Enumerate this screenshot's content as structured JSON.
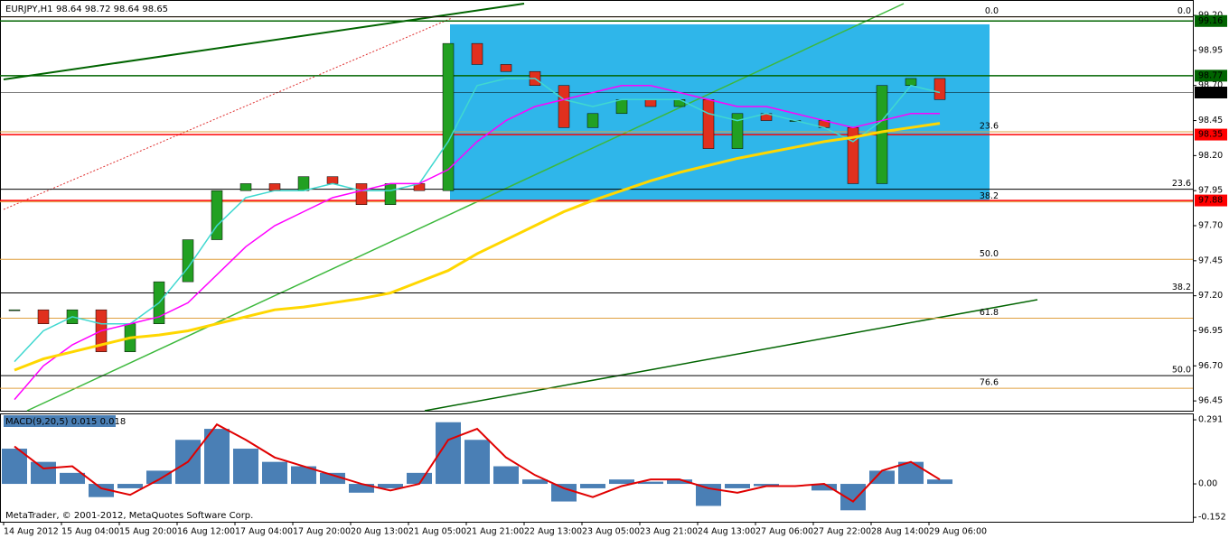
{
  "chart_data": [
    {
      "type": "candlestick",
      "title": "EURJPY,H1",
      "subtitle": "98.64 98.72 98.64 98.65",
      "categories": [
        "14 Aug 2012",
        null,
        "15 Aug 04:00",
        null,
        "15 Aug 20:00",
        null,
        "16 Aug 12:00",
        null,
        "17 Aug 04:00",
        null,
        "17 Aug 20:00",
        null,
        "20 Aug 13:00",
        null,
        "21 Aug 05:00",
        null,
        "21 Aug 21:00",
        null,
        "22 Aug 13:00",
        null,
        "23 Aug 05:00",
        null,
        "23 Aug 21:00",
        null,
        "24 Aug 13:00",
        null,
        "27 Aug 06:00",
        null,
        "27 Aug 22:00",
        null,
        "28 Aug 14:00",
        null,
        "29 Aug 06:00"
      ],
      "up_color": "#22a022",
      "down_color": "#e0301e",
      "series": [
        {
          "color": "#000000",
          "values": [
            97.1,
            97.0,
            97.1,
            96.8,
            97.0,
            97.3,
            97.6,
            97.95,
            98.0,
            97.95,
            98.05,
            98.0,
            97.85,
            98.0,
            97.95,
            99.0,
            98.85,
            98.8,
            98.7,
            98.4,
            98.5,
            98.6,
            98.55,
            98.6,
            98.25,
            98.5,
            98.45,
            98.45,
            98.4,
            98.0,
            98.7,
            98.75,
            98.6
          ]
        },
        {
          "color": "#40d8d0",
          "values": [
            96.73,
            96.95,
            97.05,
            97.0,
            97.0,
            97.15,
            97.4,
            97.7,
            97.9,
            97.95,
            97.95,
            98.0,
            97.95,
            97.95,
            98.0,
            98.3,
            98.7,
            98.75,
            98.75,
            98.6,
            98.55,
            98.6,
            98.6,
            98.6,
            98.5,
            98.45,
            98.5,
            98.45,
            98.4,
            98.3,
            98.45,
            98.7,
            98.65
          ]
        },
        {
          "color": "#ff00ff",
          "values": [
            96.46,
            96.7,
            96.85,
            96.95,
            97.0,
            97.05,
            97.15,
            97.35,
            97.55,
            97.7,
            97.8,
            97.9,
            97.95,
            98.0,
            98.0,
            98.1,
            98.3,
            98.45,
            98.55,
            98.6,
            98.65,
            98.7,
            98.7,
            98.65,
            98.6,
            98.55,
            98.55,
            98.5,
            98.45,
            98.4,
            98.45,
            98.5,
            98.5
          ]
        },
        {
          "color": "#ffd700",
          "values": [
            96.67,
            96.75,
            96.8,
            96.85,
            96.9,
            96.92,
            96.95,
            97.0,
            97.05,
            97.1,
            97.12,
            97.15,
            97.18,
            97.22,
            97.3,
            97.38,
            97.5,
            97.6,
            97.7,
            97.8,
            97.88,
            97.95,
            98.02,
            98.08,
            98.13,
            98.18,
            98.22,
            98.26,
            98.3,
            98.33,
            98.37,
            98.4,
            98.43
          ]
        }
      ],
      "ylim": [
        96.38,
        99.31
      ],
      "yticks": [
        {
          "value": 99.2,
          "label": "99.20"
        },
        98.95,
        {
          "value": 98.7,
          "label": "98.70"
        },
        98.45,
        {
          "value": 98.2,
          "label": "98.20"
        },
        97.95,
        {
          "value": 97.7,
          "label": "97.70"
        },
        97.45,
        {
          "value": 97.2,
          "label": "97.20"
        },
        96.95,
        {
          "value": 96.7,
          "label": "96.70"
        },
        96.45
      ],
      "levels": [
        {
          "value": 99.16,
          "color": "#006400"
        },
        {
          "value": 98.77,
          "color": "#006400"
        },
        {
          "value": 98.65,
          "color": "#000000"
        },
        {
          "value": 98.35,
          "color": "#ff0000"
        },
        {
          "value": 97.88,
          "color": "#ff0000"
        }
      ],
      "fib_left": [
        {
          "value": 99.19,
          "label": "0.0"
        },
        {
          "value": 98.37,
          "label": "23.6"
        },
        {
          "value": 97.87,
          "label": "38.2"
        },
        {
          "value": 97.46,
          "label": "50.0"
        },
        {
          "value": 97.04,
          "label": "61.8"
        },
        {
          "value": 96.54,
          "label": "76.6"
        }
      ],
      "fib_right": [
        {
          "value": 99.19,
          "label": "0.0"
        },
        {
          "value": 97.96,
          "label": "23.6"
        },
        {
          "value": 97.22,
          "label": "38.2"
        },
        {
          "value": 96.63,
          "label": "50.0"
        }
      ]
    },
    {
      "type": "macd",
      "title": "MACD(9,20,5) 0.015 0.018",
      "series": [
        {
          "color": "#4a7fb5",
          "values": [
            0.16,
            0.1,
            0.05,
            -0.06,
            -0.02,
            0.06,
            0.2,
            0.25,
            0.16,
            0.1,
            0.08,
            0.05,
            -0.04,
            -0.02,
            0.05,
            0.28,
            0.2,
            0.08,
            0.02,
            -0.08,
            -0.02,
            0.02,
            0.01,
            0.02,
            -0.1,
            -0.02,
            -0.01,
            0.0,
            -0.03,
            -0.12,
            0.06,
            0.1,
            0.02
          ]
        },
        {
          "color": "#e00000",
          "values": [
            0.17,
            0.07,
            0.08,
            -0.02,
            -0.05,
            0.02,
            0.1,
            0.27,
            0.2,
            0.12,
            0.08,
            0.04,
            0.0,
            -0.03,
            0.0,
            0.2,
            0.25,
            0.12,
            0.04,
            -0.02,
            -0.06,
            -0.01,
            0.02,
            0.02,
            -0.02,
            -0.04,
            -0.01,
            -0.01,
            0.0,
            -0.08,
            0.06,
            0.1,
            0.02
          ]
        }
      ],
      "ylim": [
        -0.172,
        0.32
      ],
      "yticks": [
        0.291,
        {
          "value": 0,
          "label": "0.00"
        },
        -0.152
      ]
    }
  ],
  "footer": "MetaTrader, © 2001-2012, MetaQuotes Software Corp."
}
